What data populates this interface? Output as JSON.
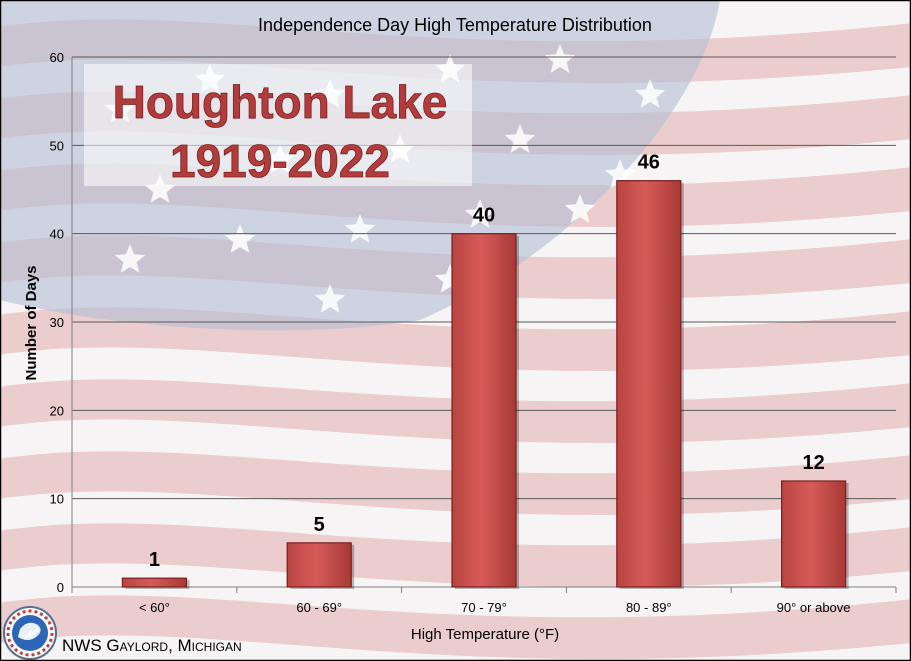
{
  "chart_data": {
    "type": "bar",
    "title": "Independence Day High Temperature Distribution",
    "overlay_title_line1": "Houghton Lake",
    "overlay_title_line2": "1919-2022",
    "xlabel": "High Temperature (°F)",
    "ylabel": "Number of Days",
    "categories": [
      "< 60°",
      "60 - 69°",
      "70 - 79°",
      "80 - 89°",
      "90° or above"
    ],
    "values": [
      1,
      5,
      40,
      46,
      12
    ],
    "ylim": [
      0,
      60
    ],
    "yticks": [
      0,
      10,
      20,
      30,
      40,
      50,
      60
    ],
    "grid": true,
    "data_labels": true,
    "bar_color": "#cd5552",
    "bar_edge_color": "#7a1f1d",
    "title_text_color": "#b23b3b"
  },
  "footer": {
    "credit": "NWS Gaylord, Michigan"
  },
  "colors": {
    "flag_red": "#d88f93",
    "flag_white": "#f4f1f2",
    "flag_blue": "#9aa6c4",
    "border": "#000000"
  }
}
